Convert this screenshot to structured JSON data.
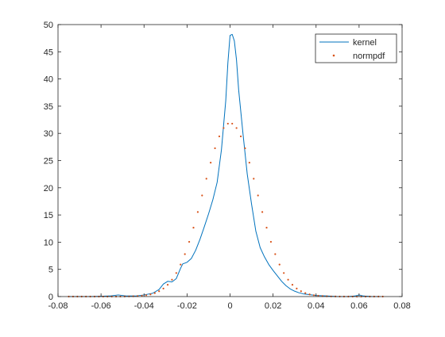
{
  "chart_data": {
    "type": "line",
    "xlim": [
      -0.08,
      0.08
    ],
    "ylim": [
      0,
      50
    ],
    "grid": false,
    "legend_position": "top-right",
    "x_ticks": [
      "-0.08",
      "-0.06",
      "-0.04",
      "-0.02",
      "0",
      "0.02",
      "0.04",
      "0.06",
      "0.08"
    ],
    "y_ticks": [
      "0",
      "5",
      "10",
      "15",
      "20",
      "25",
      "30",
      "35",
      "40",
      "45",
      "50"
    ],
    "series": [
      {
        "name": "kernel",
        "style": "line",
        "color": "#0072BD",
        "points": [
          [
            -0.075,
            0.0
          ],
          [
            -0.065,
            0.0
          ],
          [
            -0.056,
            0.1
          ],
          [
            -0.052,
            0.3
          ],
          [
            -0.048,
            0.1
          ],
          [
            -0.044,
            0.1
          ],
          [
            -0.04,
            0.3
          ],
          [
            -0.036,
            0.6
          ],
          [
            -0.033,
            1.3
          ],
          [
            -0.031,
            2.3
          ],
          [
            -0.029,
            2.8
          ],
          [
            -0.027,
            2.7
          ],
          [
            -0.025,
            3.3
          ],
          [
            -0.023,
            5.2
          ],
          [
            -0.022,
            6.0
          ],
          [
            -0.02,
            6.3
          ],
          [
            -0.018,
            7.0
          ],
          [
            -0.016,
            8.5
          ],
          [
            -0.014,
            10.5
          ],
          [
            -0.012,
            12.8
          ],
          [
            -0.01,
            15.2
          ],
          [
            -0.008,
            17.8
          ],
          [
            -0.006,
            21.0
          ],
          [
            -0.004,
            27.0
          ],
          [
            -0.002,
            36.0
          ],
          [
            -0.001,
            43.0
          ],
          [
            0.0,
            48.0
          ],
          [
            0.001,
            48.2
          ],
          [
            0.002,
            47.0
          ],
          [
            0.003,
            43.5
          ],
          [
            0.004,
            38.0
          ],
          [
            0.006,
            30.0
          ],
          [
            0.008,
            22.5
          ],
          [
            0.01,
            17.0
          ],
          [
            0.012,
            12.0
          ],
          [
            0.014,
            9.0
          ],
          [
            0.016,
            7.3
          ],
          [
            0.018,
            5.9
          ],
          [
            0.02,
            4.8
          ],
          [
            0.022,
            3.8
          ],
          [
            0.024,
            2.8
          ],
          [
            0.026,
            2.0
          ],
          [
            0.028,
            1.4
          ],
          [
            0.03,
            1.0
          ],
          [
            0.032,
            0.7
          ],
          [
            0.034,
            0.5
          ],
          [
            0.036,
            0.4
          ],
          [
            0.04,
            0.2
          ],
          [
            0.045,
            0.1
          ],
          [
            0.05,
            0.0
          ],
          [
            0.055,
            0.0
          ],
          [
            0.058,
            0.1
          ],
          [
            0.06,
            0.3
          ],
          [
            0.062,
            0.1
          ],
          [
            0.066,
            0.0
          ],
          [
            0.07,
            0.0
          ]
        ]
      },
      {
        "name": "normpdf",
        "style": "dots",
        "color": "#D95319",
        "mean": 0.0,
        "sigma": 0.01251,
        "x_start": -0.075,
        "x_end": 0.07,
        "x_step": 0.002
      }
    ]
  }
}
